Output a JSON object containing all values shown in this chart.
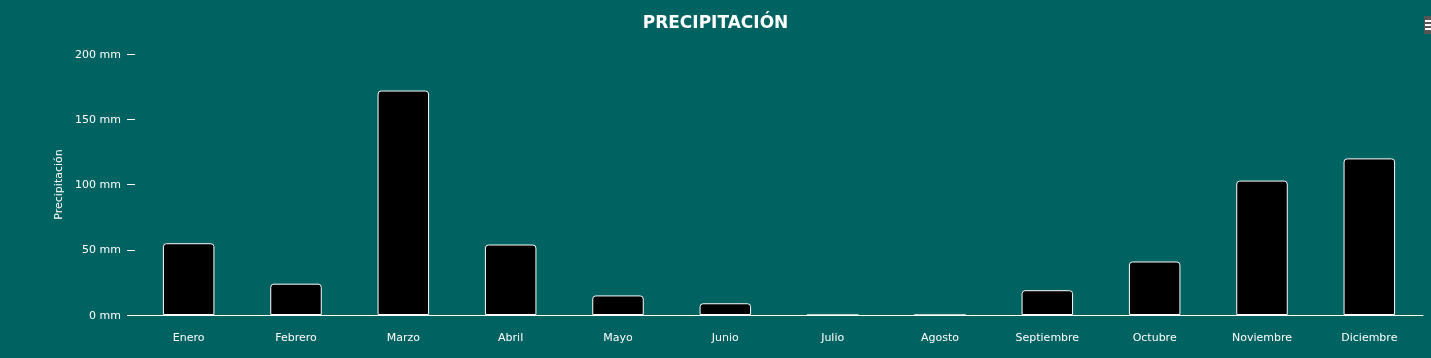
{
  "chart_data": {
    "type": "bar",
    "title": "PRECIPITACIÓN",
    "ylabel": "Precipitación",
    "categories": [
      "Enero",
      "Febrero",
      "Marzo",
      "Abril",
      "Mayo",
      "Junio",
      "Julio",
      "Agosto",
      "Septiembre",
      "Octubre",
      "Noviembre",
      "Diciembre"
    ],
    "values": [
      55,
      24,
      172,
      54,
      15,
      9,
      0,
      0,
      19,
      41,
      103,
      120
    ],
    "color": "#000000",
    "ylim": [
      0,
      200
    ],
    "yticks": [
      {
        "value": 0,
        "label": "0 mm"
      },
      {
        "value": 50,
        "label": "50 mm"
      },
      {
        "value": 100,
        "label": "100 mm"
      },
      {
        "value": 150,
        "label": "150 mm"
      },
      {
        "value": 200,
        "label": "200 mm"
      }
    ],
    "grid": false
  }
}
